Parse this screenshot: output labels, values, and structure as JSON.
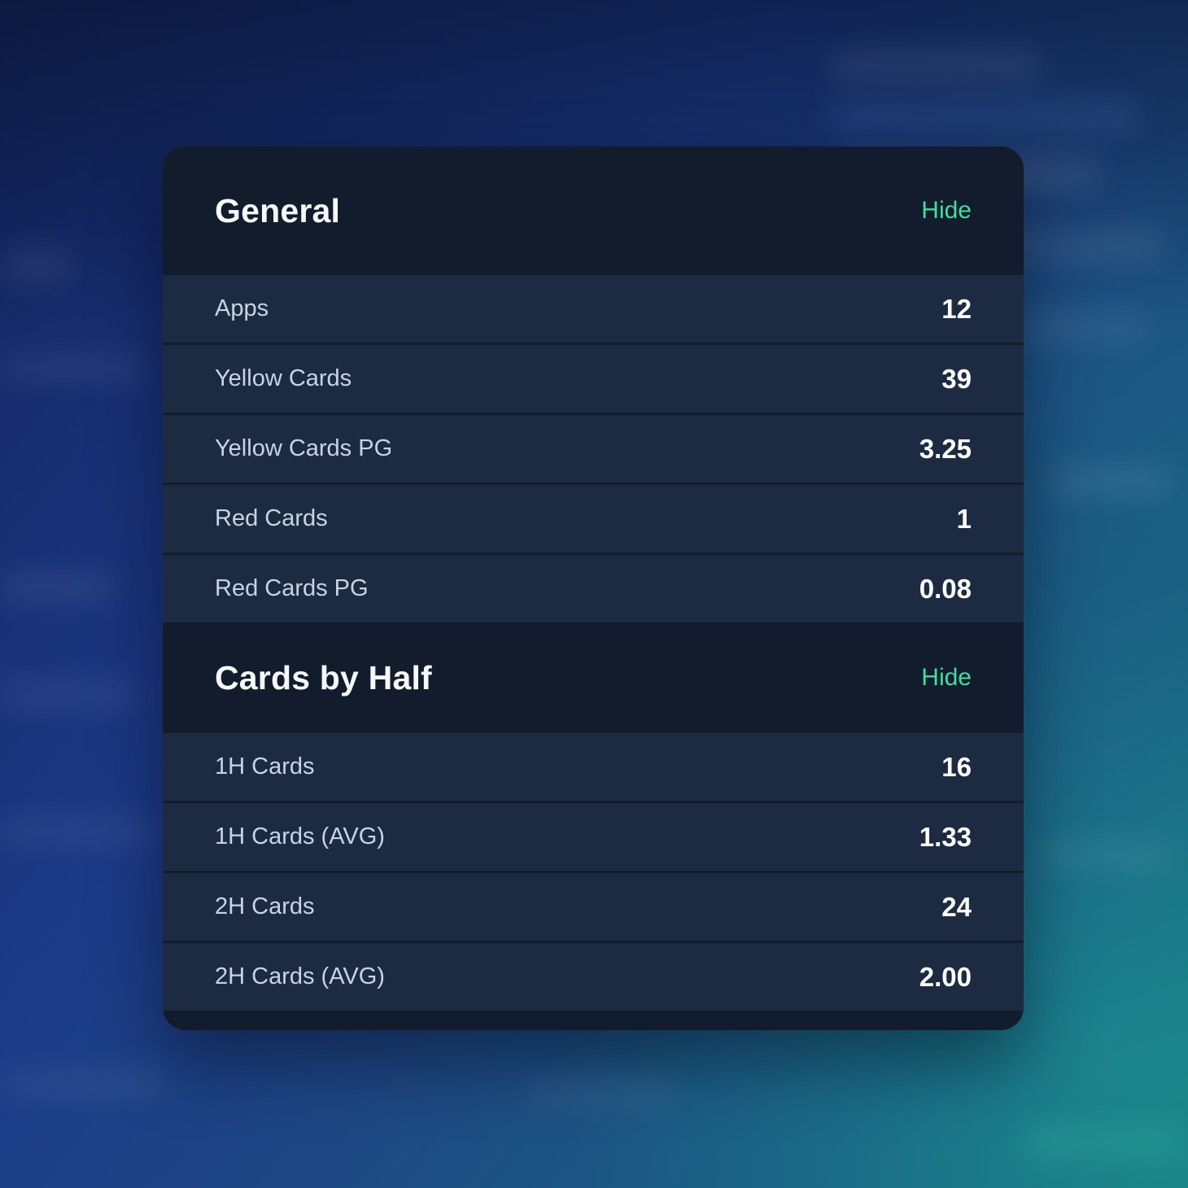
{
  "colors": {
    "hide_accent": "#3ddf9d",
    "card_background": "#131c2c",
    "row_background": "#1c2b42"
  },
  "sections": [
    {
      "title": "General",
      "toggle_label": "Hide",
      "rows": [
        {
          "label": "Apps",
          "value": "12"
        },
        {
          "label": "Yellow Cards",
          "value": "39"
        },
        {
          "label": "Yellow Cards PG",
          "value": "3.25"
        },
        {
          "label": "Red Cards",
          "value": "1"
        },
        {
          "label": "Red Cards PG",
          "value": "0.08"
        }
      ]
    },
    {
      "title": "Cards by Half",
      "toggle_label": "Hide",
      "rows": [
        {
          "label": "1H Cards",
          "value": "16"
        },
        {
          "label": "1H Cards (AVG)",
          "value": "1.33"
        },
        {
          "label": "2H Cards",
          "value": "24"
        },
        {
          "label": "2H Cards (AVG)",
          "value": "2.00"
        }
      ]
    }
  ]
}
